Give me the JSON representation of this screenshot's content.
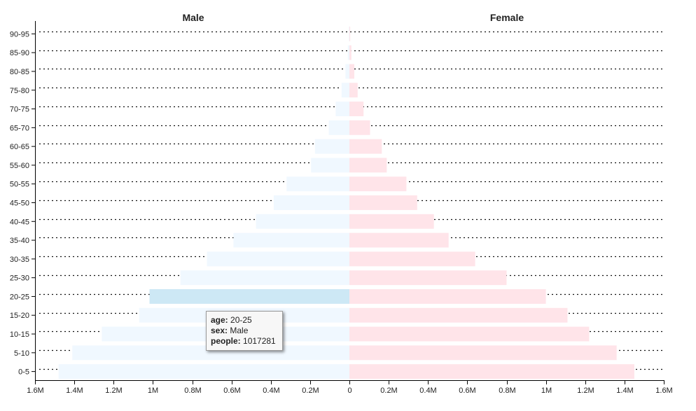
{
  "chart_data": {
    "type": "bar",
    "layout": "population-pyramid",
    "categories": [
      "0-5",
      "5-10",
      "10-15",
      "15-20",
      "20-25",
      "25-30",
      "30-35",
      "35-40",
      "40-45",
      "45-50",
      "50-55",
      "55-60",
      "60-65",
      "65-70",
      "70-75",
      "75-80",
      "80-85",
      "85-90",
      "90-95"
    ],
    "series": [
      {
        "name": "Male",
        "color": "#f0f8ff",
        "highlight_color": "#cde8f5",
        "values": [
          1480000,
          1410000,
          1260000,
          1070000,
          1017281,
          860000,
          725000,
          590000,
          475000,
          385000,
          320000,
          195000,
          175000,
          105000,
          70000,
          40000,
          20000,
          8000,
          3000
        ]
      },
      {
        "name": "Female",
        "color": "#ffe4e9",
        "values": [
          1450000,
          1360000,
          1220000,
          1110000,
          1000000,
          800000,
          640000,
          505000,
          430000,
          345000,
          290000,
          190000,
          165000,
          105000,
          72000,
          42000,
          25000,
          10000,
          4000
        ]
      }
    ],
    "xlim": [
      -1600000,
      1600000
    ],
    "x_ticks": [
      "1.6M",
      "1.4M",
      "1.2M",
      "1M",
      "0.8M",
      "0.6M",
      "0.4M",
      "0.2M",
      "0",
      "0.2M",
      "0.4M",
      "0.6M",
      "0.8M",
      "1M",
      "1.2M",
      "1.4M",
      "1.6M"
    ],
    "grid": "horizontal-dotted",
    "highlighted": {
      "series": "Male",
      "category": "20-25"
    }
  },
  "tooltip": {
    "age_label": "age:",
    "age_value": "20-25",
    "sex_label": "sex:",
    "sex_value": "Male",
    "people_label": "people:",
    "people_value": "1017281"
  }
}
